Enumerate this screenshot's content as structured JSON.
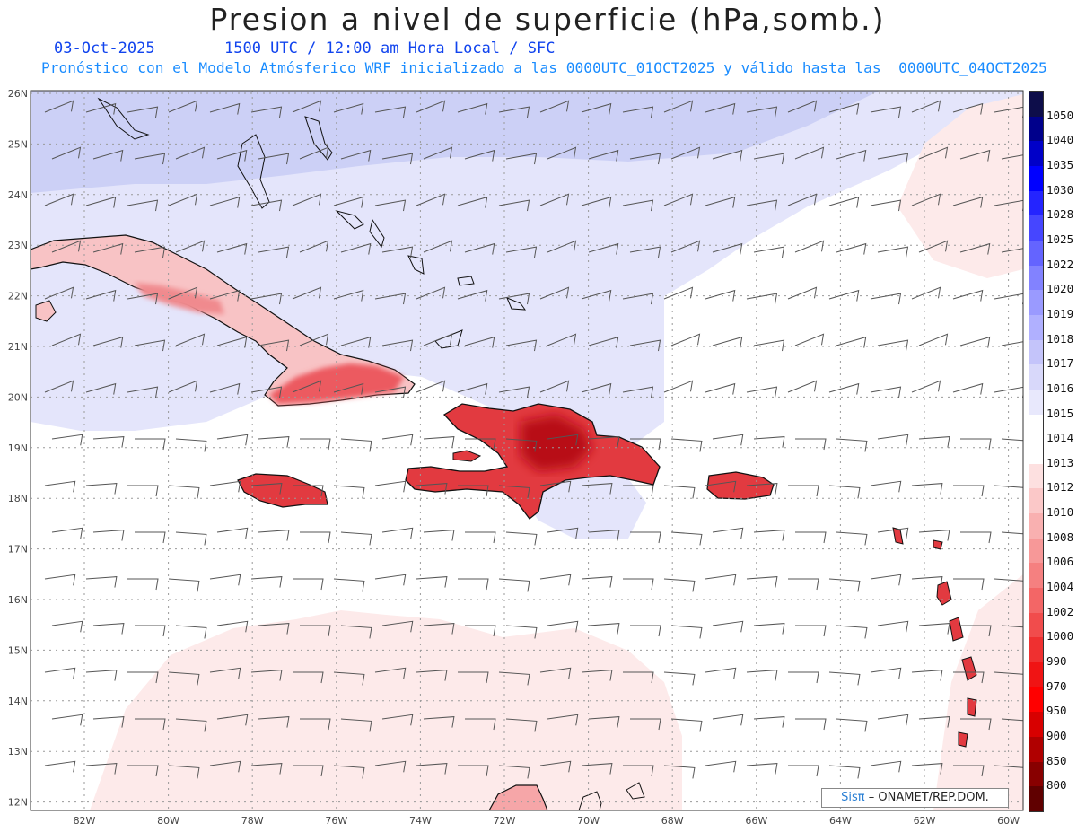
{
  "header": {
    "title": "Presion a nivel de superficie (hPa,somb.)",
    "date": "03-Oct-2025",
    "valid_time": "1500 UTC / 12:00 am Hora Local / SFC",
    "model_info": "Pronóstico con el Modelo Atmósferico WRF inicializado a las 0000UTC_01OCT2025 y válido hasta las  0000UTC_04OCT2025"
  },
  "map": {
    "lat_labels": [
      "26N",
      "25N",
      "24N",
      "23N",
      "22N",
      "21N",
      "20N",
      "19N",
      "18N",
      "17N",
      "16N",
      "15N",
      "14N",
      "13N",
      "12N"
    ],
    "lon_labels": [
      "82W",
      "80W",
      "78W",
      "76W",
      "74W",
      "72W",
      "70W",
      "68W",
      "66W",
      "64W",
      "62W",
      "60W"
    ],
    "gridlines": "dotted",
    "colors": {
      "water_high": "#c8ccf4",
      "water_mid": "#e2e4fa",
      "neutral": "#ffffff",
      "land_low": "#e8303a",
      "land_mid": "#f6a6a8",
      "light_pink": "#fdecec"
    }
  },
  "credit": {
    "brand": "Sisπ",
    "org": "– ONAMET/REP.DOM."
  },
  "colorbar": {
    "levels": [
      "1050",
      "1040",
      "1035",
      "1030",
      "1028",
      "1025",
      "1022",
      "1020",
      "1019",
      "1018",
      "1017",
      "1016",
      "1015",
      "1014",
      "1013",
      "1012",
      "1010",
      "1008",
      "1006",
      "1004",
      "1002",
      "1000",
      "990",
      "970",
      "950",
      "900",
      "850",
      "800"
    ],
    "colors": [
      "#0d0d4a",
      "#00008b",
      "#0000c8",
      "#0000ff",
      "#2424ff",
      "#4646ff",
      "#6464ff",
      "#8282ff",
      "#9a9aff",
      "#b0b0ff",
      "#c4c4fa",
      "#d8d8fa",
      "#e8e8fc",
      "#ffffff",
      "#ffffff",
      "#fde0e0",
      "#fbc8c8",
      "#f9b0b0",
      "#f79898",
      "#f58080",
      "#f36666",
      "#f14c4c",
      "#ef3030",
      "#f01414",
      "#ff0000",
      "#d80000",
      "#b00000",
      "#880000",
      "#600000"
    ]
  }
}
